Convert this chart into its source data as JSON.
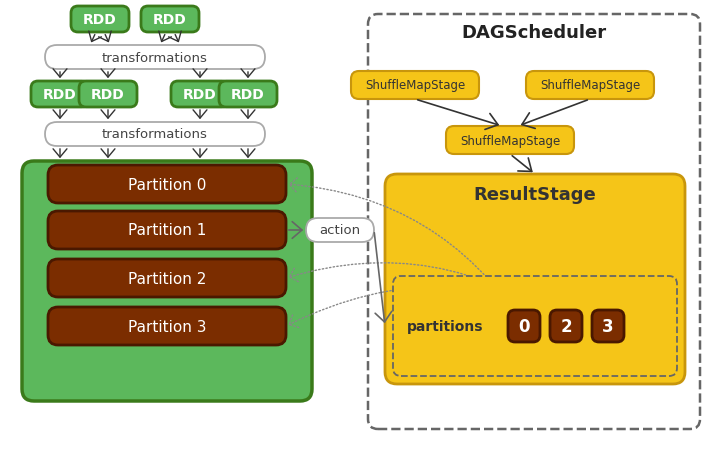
{
  "bg_color": "#ffffff",
  "green_rdd": "#5cb85c",
  "green_border": "#3a7a1a",
  "orange_stage": "#f5c518",
  "orange_border": "#c8960c",
  "orange_light": "#f5c518",
  "brown_partition": "#7b2d00",
  "brown_border": "#4a1800",
  "gray_border": "#666666",
  "light_gray": "#aaaaaa",
  "title_dag": "DAGScheduler",
  "title_rdd_box": "RDD",
  "title_result": "ResultStage",
  "partitions_label": "partitions",
  "partition_labels": [
    "Partition 0",
    "Partition 1",
    "Partition 2",
    "Partition 3"
  ],
  "partition_nums": [
    "0",
    "2",
    "3"
  ],
  "shuffle_labels": [
    "ShuffleMapStage",
    "ShuffleMapStage",
    "ShuffleMapStage"
  ],
  "action_label": "action",
  "rdd_top_labels": [
    "RDD",
    "RDD"
  ],
  "rdd_mid_labels": [
    "RDD",
    "RDD",
    "RDD",
    "RDD"
  ],
  "trans_label": "transformations"
}
